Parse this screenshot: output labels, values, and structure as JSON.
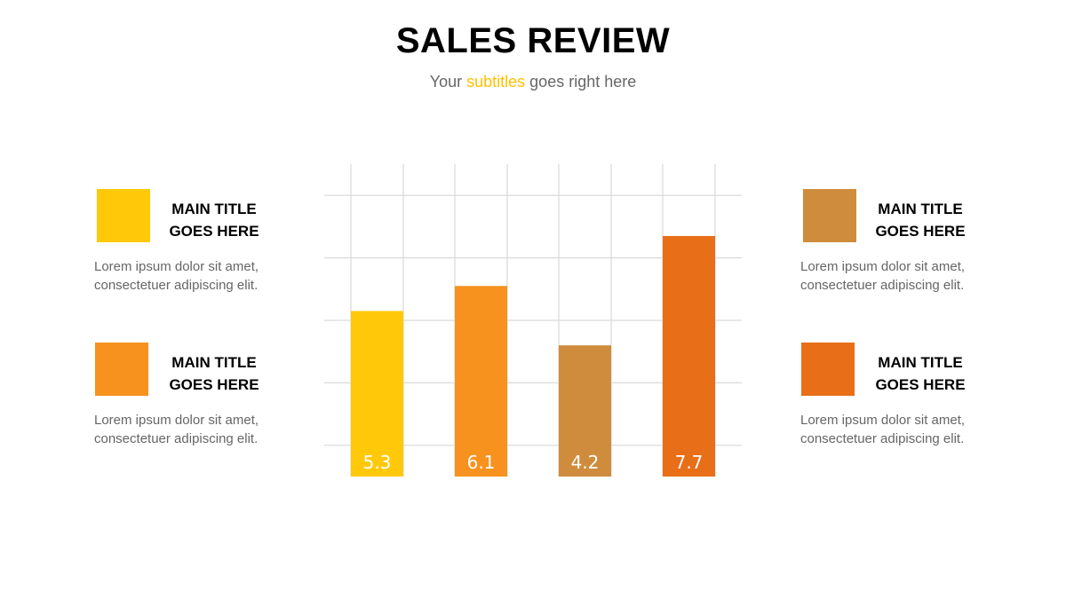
{
  "header": {
    "title": "SALES REVIEW",
    "subtitle_pre": "Your ",
    "subtitle_accent": "subtitles",
    "subtitle_post": " goes right here"
  },
  "colors": {
    "accent": "#FFC000",
    "yellow": "#FFC90A",
    "orange": "#F7921E",
    "tan": "#CF8C3C",
    "dark_orange": "#E86E18",
    "grid": "#d9d9d9"
  },
  "info_boxes": [
    {
      "title": "MAIN TITLE\nGOES HERE",
      "text": "Lorem ipsum dolor sit amet,\nconsectetuer adipiscing elit.",
      "color": "#FFC90A"
    },
    {
      "title": "MAIN TITLE\nGOES HERE",
      "text": "Lorem ipsum dolor sit amet,\nconsectetuer adipiscing elit.",
      "color": "#F7921E"
    },
    {
      "title": "MAIN TITLE\nGOES HERE",
      "text": "Lorem ipsum dolor sit amet,\nconsectetuer adipiscing elit.",
      "color": "#CF8C3C"
    },
    {
      "title": "MAIN TITLE\nGOES HERE",
      "text": "Lorem ipsum dolor sit amet,\nconsectetuer adipiscing elit.",
      "color": "#E86E18"
    }
  ],
  "chart_data": {
    "type": "bar",
    "categories": [
      "",
      "",
      "",
      ""
    ],
    "values": [
      5.3,
      6.1,
      4.2,
      7.7
    ],
    "value_labels": [
      "5.3",
      "6.1",
      "4.2",
      "7.7"
    ],
    "bar_colors": [
      "#FFC90A",
      "#F7921E",
      "#CF8C3C",
      "#E86E18"
    ],
    "title": "",
    "xlabel": "",
    "ylabel": "",
    "ylim": [
      0,
      10
    ],
    "grid": true,
    "legend": "none"
  }
}
